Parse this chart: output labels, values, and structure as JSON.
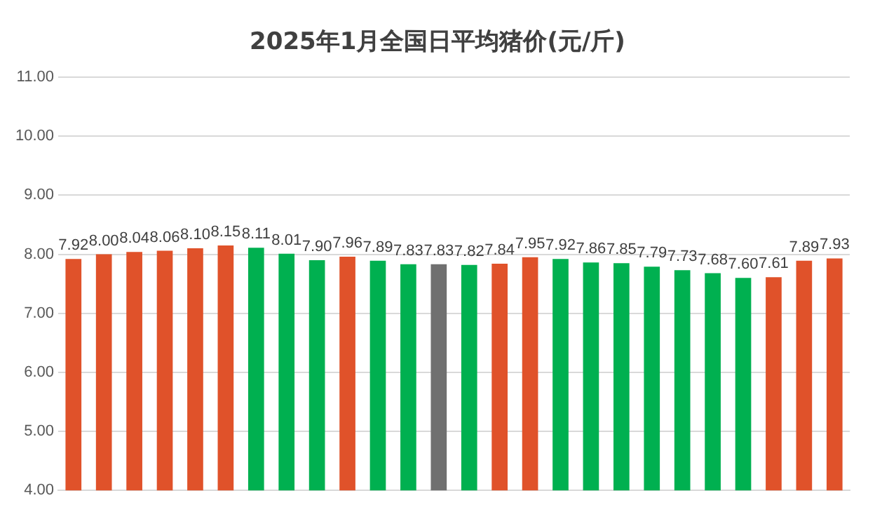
{
  "chart_data": {
    "type": "bar",
    "title": "2025年1月全国日平均猪价(元/斤)",
    "categories": [
      null,
      null,
      null,
      null,
      null,
      null,
      null,
      null,
      null,
      null,
      null,
      null,
      null,
      null,
      null,
      null,
      null,
      null,
      null,
      null,
      null,
      null,
      null,
      null,
      null,
      null
    ],
    "values": [
      7.92,
      8.0,
      8.04,
      8.06,
      8.1,
      8.15,
      8.11,
      8.01,
      7.9,
      7.96,
      7.89,
      7.83,
      7.83,
      7.82,
      7.84,
      7.95,
      7.92,
      7.86,
      7.85,
      7.79,
      7.73,
      7.68,
      7.6,
      7.61,
      7.89,
      7.93
    ],
    "value_labels": [
      "7.92",
      "8.00",
      "8.04",
      "8.06",
      "8.10",
      "8.15",
      "8.11",
      "8.01",
      "7.90",
      "7.96",
      "7.89",
      "7.83",
      "7.83",
      "7.82",
      "7.84",
      "7.95",
      "7.92",
      "7.86",
      "7.85",
      "7.79",
      "7.73",
      "7.68",
      "7.60",
      "7.61",
      "7.89",
      "7.93"
    ],
    "colors": [
      "#e0522a",
      "#e0522a",
      "#e0522a",
      "#e0522a",
      "#e0522a",
      "#e0522a",
      "#00b050",
      "#00b050",
      "#00b050",
      "#e0522a",
      "#00b050",
      "#00b050",
      "#707070",
      "#00b050",
      "#e0522a",
      "#e0522a",
      "#00b050",
      "#00b050",
      "#00b050",
      "#00b050",
      "#00b050",
      "#00b050",
      "#00b050",
      "#e0522a",
      "#e0522a",
      "#e0522a"
    ],
    "ylim": [
      4,
      11
    ],
    "yticks": [
      {
        "value": 4,
        "label": "4.00"
      },
      {
        "value": 5,
        "label": "5.00"
      },
      {
        "value": 6,
        "label": "6.00"
      },
      {
        "value": 7,
        "label": "7.00"
      },
      {
        "value": 8,
        "label": "8.00"
      },
      {
        "value": 9,
        "label": "9.00"
      },
      {
        "value": 10,
        "label": "10.00"
      },
      {
        "value": 11,
        "label": "11.00"
      }
    ],
    "grid": "y",
    "legend": false
  }
}
